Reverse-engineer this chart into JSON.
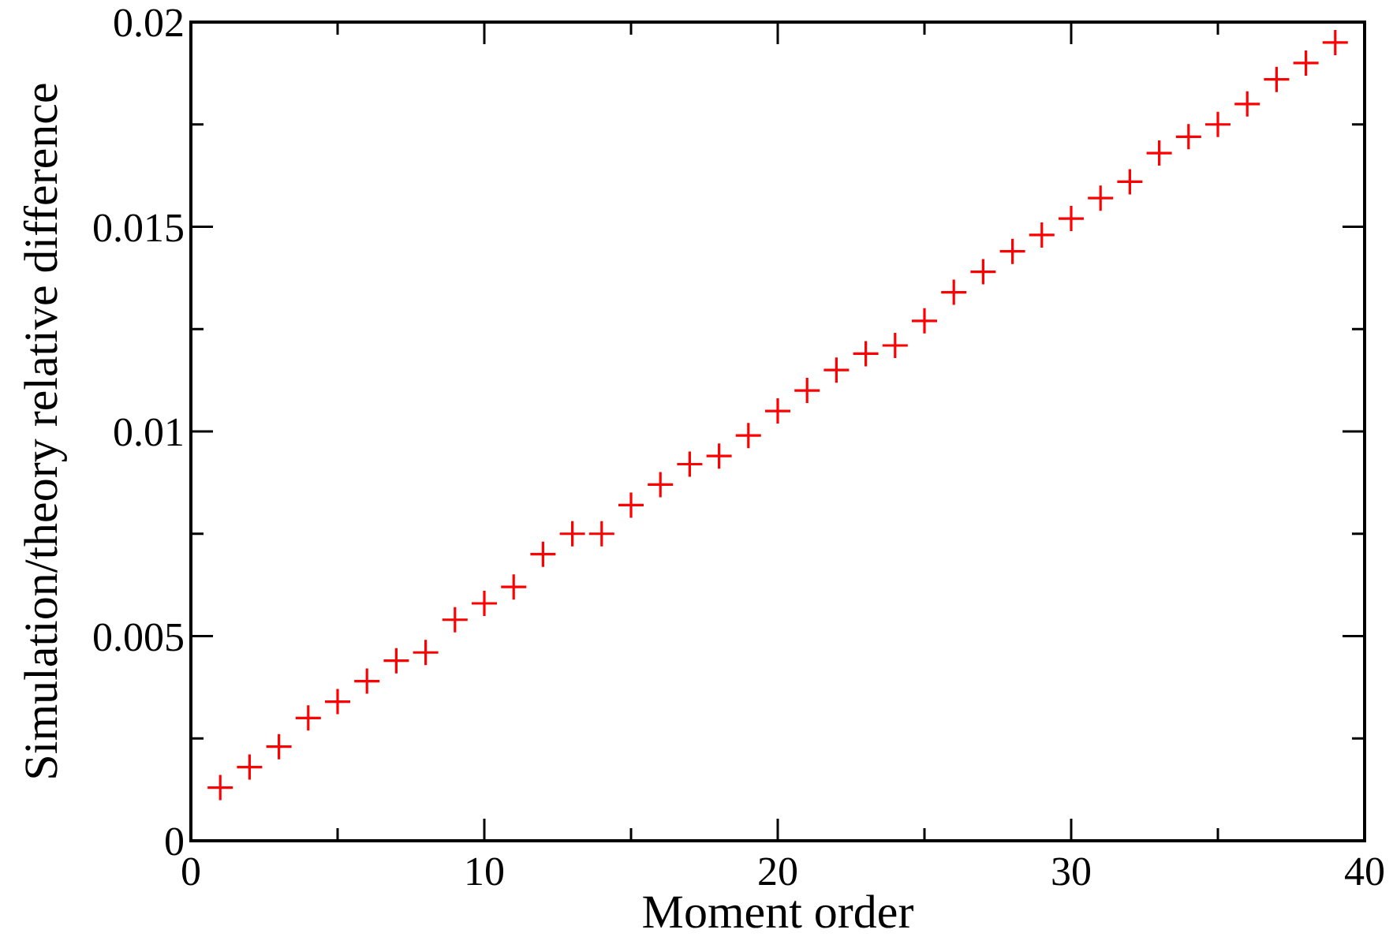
{
  "chart_data": {
    "type": "scatter",
    "xlabel": "Moment order",
    "ylabel": "Simulation/theory relative difference",
    "x": [
      1,
      2,
      3,
      4,
      5,
      6,
      7,
      8,
      9,
      10,
      11,
      12,
      13,
      14,
      15,
      16,
      17,
      18,
      19,
      20,
      21,
      22,
      23,
      24,
      25,
      26,
      27,
      28,
      29,
      30,
      31,
      32,
      33,
      34,
      35,
      36,
      37,
      38,
      39
    ],
    "series": [
      {
        "color": "#ff0000",
        "values": [
          0.0013,
          0.0018,
          0.0023,
          0.003,
          0.0034,
          0.0039,
          0.0044,
          0.0046,
          0.0054,
          0.0058,
          0.0062,
          0.007,
          0.0075,
          0.0075,
          0.0082,
          0.0087,
          0.0092,
          0.0094,
          0.0099,
          0.0105,
          0.011,
          0.0115,
          0.0119,
          0.0121,
          0.0127,
          0.0134,
          0.0139,
          0.0144,
          0.0148,
          0.0152,
          0.0157,
          0.0161,
          0.0168,
          0.0172,
          0.0175,
          0.018,
          0.0186,
          0.019,
          0.0195
        ]
      }
    ],
    "marker": "cross",
    "xlim": [
      0,
      40
    ],
    "xticks": [
      0,
      {
        "value": 5,
        "label": null
      },
      10,
      {
        "value": 15,
        "label": null
      },
      20,
      {
        "value": 25,
        "label": null
      },
      30,
      {
        "value": 35,
        "label": null
      },
      40
    ],
    "ylim": [
      0,
      0.02
    ],
    "yticks": [
      0,
      {
        "value": 0.0025,
        "label": null
      },
      0.005,
      {
        "value": 0.0075,
        "label": null
      },
      0.01,
      {
        "value": 0.0125,
        "label": null
      },
      0.015,
      {
        "value": 0.0175,
        "label": null
      },
      0.02
    ],
    "grid": false
  }
}
